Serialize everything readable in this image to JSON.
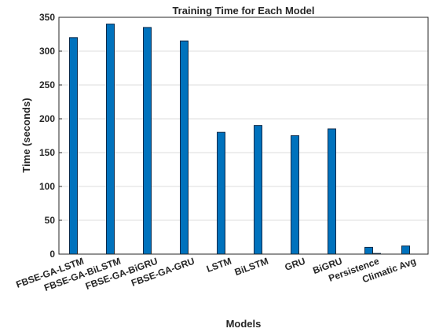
{
  "chart_data": {
    "type": "bar",
    "title": "Training  Time for Each Model",
    "xlabel": "Models",
    "ylabel": "Time (seconds)",
    "ylim": [
      0,
      350
    ],
    "yticks": [
      0,
      50,
      100,
      150,
      200,
      250,
      300,
      350
    ],
    "grid": true,
    "bar_color": "#0072BD",
    "categories": [
      "FBSE-GA-LSTM",
      "FBSE-GA-BiLSTM",
      "FBSE-GA-BiGRU",
      "FBSE-GA-GRU",
      "LSTM",
      "BiLSTM",
      "GRU",
      "BiGRU",
      "Persistence",
      "Climatic Avg"
    ],
    "series": [
      {
        "values": [
          320,
          340,
          335,
          315,
          180,
          190,
          175,
          185,
          10,
          12
        ]
      },
      {
        "values": [
          0,
          0,
          0,
          0,
          0,
          0,
          0,
          0,
          1,
          0
        ]
      }
    ]
  }
}
